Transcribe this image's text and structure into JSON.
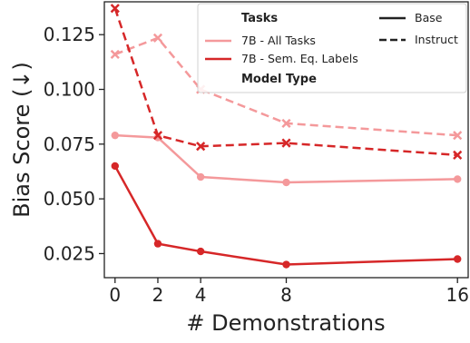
{
  "chart_data": {
    "type": "line",
    "xlabel": "# Demonstrations",
    "ylabel": "Bias Score (↓)",
    "x": [
      0,
      2,
      4,
      8,
      16
    ],
    "xticks": [
      "0",
      "2",
      "4",
      "8",
      "16"
    ],
    "xlim": [
      -0.5,
      16.5
    ],
    "ylim": [
      0.014,
      0.14
    ],
    "yticks": [
      "0.025",
      "0.050",
      "0.075",
      "0.100",
      "0.125"
    ],
    "ytick_values": [
      0.025,
      0.05,
      0.075,
      0.1,
      0.125
    ],
    "grid": false,
    "legend_position": "top-right",
    "legend": {
      "tasks_title": "Tasks",
      "task_all": "7B - All Tasks",
      "task_sem": "7B - Sem. Eq. Labels",
      "model_type_title": "Model Type",
      "base": "Base",
      "instruct": "Instruct"
    },
    "series": [
      {
        "task": "7B - All Tasks",
        "model_type": "Base",
        "color": "#f4999b",
        "values": [
          0.079,
          0.078,
          0.06,
          0.0575,
          0.059
        ]
      },
      {
        "task": "7B - All Tasks",
        "model_type": "Instruct",
        "color": "#f4999b",
        "values": [
          0.116,
          0.1235,
          0.1,
          0.0845,
          0.079
        ]
      },
      {
        "task": "7B - Sem. Eq. Labels",
        "model_type": "Base",
        "color": "#d62728",
        "values": [
          0.065,
          0.0295,
          0.026,
          0.02,
          0.0225
        ]
      },
      {
        "task": "7B - Sem. Eq. Labels",
        "model_type": "Instruct",
        "color": "#d62728",
        "values": [
          0.137,
          0.079,
          0.074,
          0.0755,
          0.07
        ]
      }
    ]
  }
}
